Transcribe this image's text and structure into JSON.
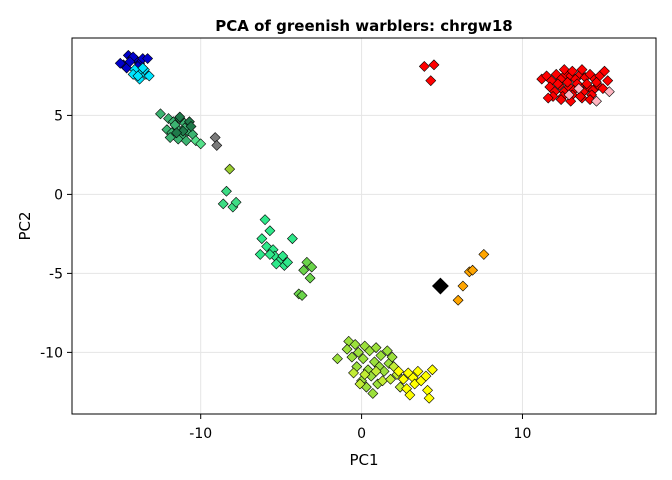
{
  "chart_data": {
    "type": "scatter",
    "title": "PCA of greenish warblers: chrgw18",
    "xlabel": "PC1",
    "ylabel": "PC2",
    "xlim": [
      -18,
      18.3
    ],
    "ylim": [
      -13.9,
      9.9
    ],
    "xticks": [
      -10,
      0,
      10
    ],
    "xtick_labels": [
      "-10",
      "0",
      "10"
    ],
    "yticks": [
      -10,
      -5,
      0,
      5
    ],
    "ytick_labels": [
      "-10",
      "-5",
      "0",
      "5"
    ],
    "grid": true,
    "legend": "none",
    "marker": "diamond",
    "series": [
      {
        "color": "#0000cc",
        "points": [
          [
            -14.8,
            8.2
          ],
          [
            -14.5,
            8.8
          ],
          [
            -14.3,
            8.6
          ],
          [
            -14.0,
            8.5
          ],
          [
            -13.8,
            8.3
          ],
          [
            -14.6,
            8.0
          ],
          [
            -14.2,
            8.7
          ],
          [
            -13.6,
            8.6
          ],
          [
            -13.3,
            8.6
          ],
          [
            -15.0,
            8.3
          ],
          [
            -13.9,
            8.1
          ],
          [
            -14.4,
            8.4
          ]
        ]
      },
      {
        "color": "#00e5ff",
        "points": [
          [
            -14.1,
            7.9
          ],
          [
            -13.7,
            7.7
          ],
          [
            -13.4,
            7.6
          ],
          [
            -13.8,
            7.3
          ],
          [
            -13.5,
            7.9
          ],
          [
            -13.2,
            7.5
          ],
          [
            -14.2,
            7.6
          ],
          [
            -13.6,
            8.0
          ],
          [
            -13.9,
            7.5
          ]
        ]
      },
      {
        "color": "#3cb371",
        "points": [
          [
            -12.5,
            5.1
          ],
          [
            -12.0,
            4.8
          ],
          [
            -11.7,
            4.6
          ],
          [
            -11.3,
            4.8
          ],
          [
            -11.0,
            4.5
          ],
          [
            -11.5,
            4.2
          ],
          [
            -12.1,
            4.1
          ],
          [
            -11.8,
            3.9
          ],
          [
            -11.2,
            3.7
          ],
          [
            -10.8,
            4.0
          ],
          [
            -11.4,
            3.5
          ],
          [
            -11.9,
            3.6
          ],
          [
            -10.9,
            3.4
          ],
          [
            -11.6,
            4.4
          ],
          [
            -11.0,
            4.2
          ],
          [
            -10.5,
            3.8
          ]
        ]
      },
      {
        "color": "#1f7a4a",
        "points": [
          [
            -11.3,
            4.9
          ],
          [
            -10.7,
            4.6
          ],
          [
            -11.1,
            4.0
          ],
          [
            -10.6,
            4.3
          ],
          [
            -11.5,
            3.9
          ]
        ]
      },
      {
        "color": "#7a7a7a",
        "points": [
          [
            -9.1,
            3.6
          ],
          [
            -9.0,
            3.1
          ]
        ]
      },
      {
        "color": "#55e08a",
        "points": [
          [
            -10.3,
            3.4
          ],
          [
            -10.0,
            3.2
          ]
        ]
      },
      {
        "color": "#9acd32",
        "points": [
          [
            -8.2,
            1.6
          ]
        ]
      },
      {
        "color": "#3ddc84",
        "points": [
          [
            -8.4,
            0.2
          ],
          [
            -8.6,
            -0.6
          ],
          [
            -8.0,
            -0.8
          ],
          [
            -7.8,
            -0.5
          ]
        ]
      },
      {
        "color": "#2ee88a",
        "points": [
          [
            -6.0,
            -1.6
          ],
          [
            -5.7,
            -2.3
          ],
          [
            -6.2,
            -2.8
          ],
          [
            -5.9,
            -3.3
          ],
          [
            -5.5,
            -3.5
          ],
          [
            -6.3,
            -3.8
          ],
          [
            -5.4,
            -3.9
          ],
          [
            -5.0,
            -4.1
          ],
          [
            -4.8,
            -4.5
          ],
          [
            -5.3,
            -4.4
          ],
          [
            -4.6,
            -4.3
          ],
          [
            -4.9,
            -3.9
          ],
          [
            -5.7,
            -3.8
          ],
          [
            -4.3,
            -2.8
          ]
        ]
      },
      {
        "color": "#6ad44a",
        "points": [
          [
            -3.4,
            -4.3
          ],
          [
            -3.1,
            -4.6
          ],
          [
            -3.6,
            -4.8
          ],
          [
            -3.2,
            -5.3
          ],
          [
            -3.9,
            -6.3
          ],
          [
            -3.7,
            -6.4
          ]
        ]
      },
      {
        "color": "#9be03c",
        "points": [
          [
            -1.5,
            -10.4
          ],
          [
            -0.8,
            -9.3
          ],
          [
            -0.4,
            -9.5
          ],
          [
            -0.9,
            -9.8
          ],
          [
            -0.2,
            -10.0
          ],
          [
            -0.6,
            -10.3
          ],
          [
            0.2,
            -9.6
          ],
          [
            0.5,
            -9.9
          ],
          [
            0.1,
            -10.4
          ],
          [
            -0.3,
            -10.9
          ],
          [
            0.4,
            -11.1
          ],
          [
            0.8,
            -10.6
          ],
          [
            1.1,
            -10.9
          ],
          [
            0.6,
            -11.5
          ],
          [
            1.4,
            -11.2
          ],
          [
            1.7,
            -10.7
          ],
          [
            1.2,
            -10.2
          ],
          [
            0.9,
            -9.7
          ],
          [
            1.6,
            -9.9
          ],
          [
            1.9,
            -10.3
          ],
          [
            0.3,
            -12.2
          ],
          [
            0.7,
            -12.6
          ],
          [
            0.0,
            -11.8
          ],
          [
            1.0,
            -12.0
          ]
        ]
      },
      {
        "color": "#c2ec34",
        "points": [
          [
            -0.5,
            -11.3
          ],
          [
            0.2,
            -11.4
          ],
          [
            1.3,
            -11.8
          ],
          [
            2.0,
            -10.9
          ],
          [
            2.2,
            -11.4
          ],
          [
            1.8,
            -11.7
          ],
          [
            0.9,
            -11.2
          ],
          [
            2.4,
            -12.2
          ],
          [
            -0.1,
            -12.0
          ]
        ]
      },
      {
        "color": "#ffff00",
        "points": [
          [
            2.3,
            -11.2
          ],
          [
            2.6,
            -11.7
          ],
          [
            2.9,
            -11.3
          ],
          [
            3.2,
            -11.6
          ],
          [
            3.5,
            -11.2
          ],
          [
            2.8,
            -12.3
          ],
          [
            3.0,
            -12.7
          ],
          [
            3.3,
            -12.0
          ],
          [
            3.7,
            -11.8
          ],
          [
            4.0,
            -11.5
          ],
          [
            4.4,
            -11.1
          ],
          [
            4.1,
            -12.4
          ],
          [
            4.2,
            -12.9
          ]
        ]
      },
      {
        "color": "#000000",
        "size": 1.6,
        "points": [
          [
            4.9,
            -5.8
          ]
        ]
      },
      {
        "color": "#ffa500",
        "points": [
          [
            6.0,
            -6.7
          ],
          [
            6.3,
            -5.8
          ],
          [
            6.7,
            -4.9
          ],
          [
            6.9,
            -4.8
          ],
          [
            7.6,
            -3.8
          ]
        ]
      },
      {
        "color": "#ff0000",
        "points": [
          [
            3.9,
            8.1
          ],
          [
            4.5,
            8.2
          ],
          [
            4.3,
            7.2
          ],
          [
            11.2,
            7.3
          ],
          [
            11.5,
            7.5
          ],
          [
            11.8,
            7.2
          ],
          [
            12.1,
            7.6
          ],
          [
            12.4,
            7.3
          ],
          [
            12.7,
            7.6
          ],
          [
            13.0,
            7.5
          ],
          [
            13.3,
            7.3
          ],
          [
            13.6,
            7.6
          ],
          [
            13.9,
            7.4
          ],
          [
            14.2,
            7.6
          ],
          [
            14.5,
            7.3
          ],
          [
            14.8,
            7.5
          ],
          [
            15.1,
            7.8
          ],
          [
            15.3,
            7.2
          ],
          [
            11.7,
            6.8
          ],
          [
            12.0,
            6.5
          ],
          [
            12.3,
            6.9
          ],
          [
            12.6,
            6.5
          ],
          [
            12.9,
            6.8
          ],
          [
            13.2,
            6.6
          ],
          [
            13.5,
            6.9
          ],
          [
            13.8,
            6.5
          ],
          [
            14.1,
            6.8
          ],
          [
            14.4,
            6.6
          ],
          [
            14.7,
            6.9
          ],
          [
            15.0,
            6.7
          ],
          [
            11.9,
            6.2
          ],
          [
            12.5,
            6.2
          ],
          [
            13.1,
            6.3
          ],
          [
            13.7,
            6.1
          ],
          [
            14.3,
            6.3
          ],
          [
            12.2,
            7.0
          ],
          [
            12.8,
            7.1
          ],
          [
            13.4,
            7.0
          ],
          [
            14.0,
            7.0
          ],
          [
            14.6,
            7.1
          ],
          [
            11.6,
            6.1
          ],
          [
            12.4,
            6.0
          ],
          [
            13.0,
            5.9
          ],
          [
            13.6,
            6.2
          ],
          [
            14.2,
            6.0
          ],
          [
            12.6,
            7.9
          ],
          [
            13.1,
            7.8
          ],
          [
            13.7,
            7.9
          ]
        ]
      },
      {
        "color": "#ffb6c1",
        "points": [
          [
            14.6,
            5.9
          ],
          [
            15.4,
            6.5
          ],
          [
            12.9,
            6.3
          ],
          [
            13.5,
            6.7
          ]
        ]
      }
    ]
  }
}
